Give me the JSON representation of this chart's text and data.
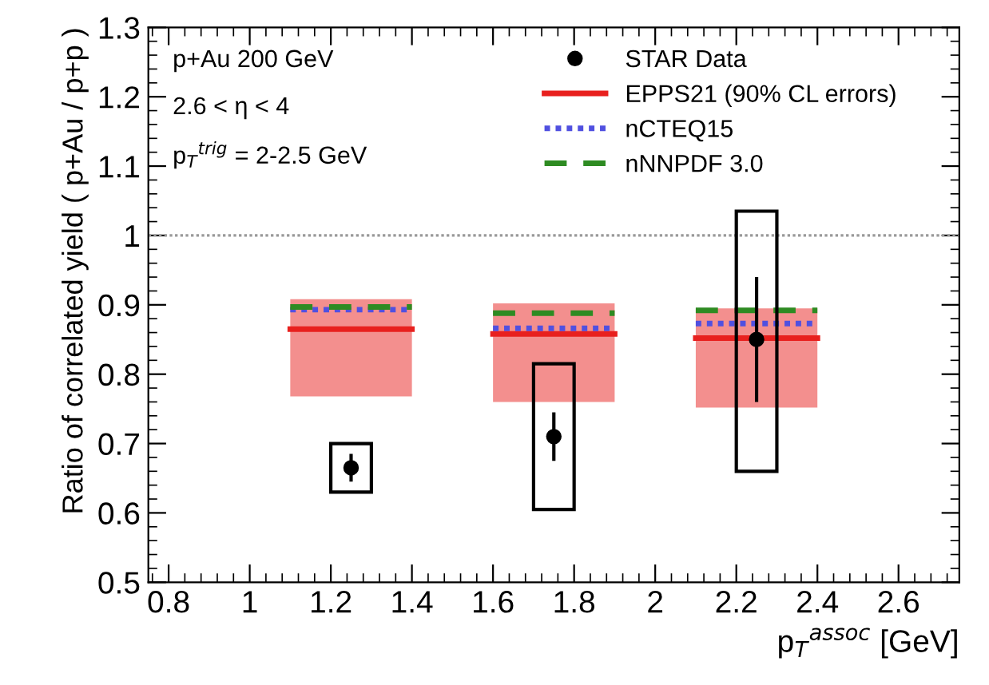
{
  "chart_data": {
    "type": "scatter",
    "xlabel": "p$_{T}$$^{assoc}$ [GeV]",
    "ylabel": "Ratio of correlated yield ( p+Au / p+p )",
    "annotations": [
      "p+Au 200 GeV",
      "2.6 < η < 4",
      "p$_{T}$$^{trig}$ = 2-2.5 GeV"
    ],
    "xlim": [
      0.75,
      2.75
    ],
    "xticks": [
      0.8,
      1,
      1.2,
      1.4,
      1.6,
      1.8,
      2,
      2.2,
      2.4,
      2.6
    ],
    "ylim": [
      0.5,
      1.3
    ],
    "yticks": [
      0.5,
      0.6,
      0.7,
      0.8,
      0.9,
      1,
      1.1,
      1.2,
      1.3
    ],
    "grid": false,
    "legend": "top right",
    "ref_lines": [
      {
        "axis": "y",
        "value": 1,
        "color": "#999999",
        "line_style": "dotted"
      }
    ],
    "series": [
      {
        "name": "STAR Data",
        "color": "#000000",
        "marker": "circle",
        "x": [
          1.25,
          1.75,
          2.25
        ],
        "values": [
          0.665,
          0.71,
          0.85
        ],
        "errors": [
          0.02,
          0.035,
          0.09
        ]
      },
      {
        "type": "bar",
        "color": "#000000",
        "x": [
          1.25,
          1.75,
          2.25
        ],
        "base": [
          0.63,
          0.605,
          0.66
        ],
        "values": [
          0.07,
          0.21,
          0.375
        ]
      },
      {
        "name": "EPPS21 (90% CL errors)",
        "type": "line",
        "color": "#e8201e",
        "line_style": "solid",
        "x": [
          1.1,
          1.4,
          1.5,
          1.6,
          1.9,
          2.0,
          2.1,
          2.4
        ],
        "values": [
          0.865,
          0.865,
          null,
          0.858,
          0.858,
          null,
          0.852,
          0.852
        ],
        "lower": [
          0.768,
          0.768,
          null,
          0.76,
          0.76,
          null,
          0.752,
          0.752
        ],
        "upper": [
          0.908,
          0.908,
          null,
          0.902,
          0.902,
          null,
          0.895,
          0.895
        ]
      },
      {
        "name": "nCTEQ15",
        "type": "line",
        "color": "#5050e0",
        "line_style": "dotted",
        "x": [
          1.1,
          1.4,
          1.5,
          1.6,
          1.9,
          2.0,
          2.1,
          2.4
        ],
        "values": [
          0.893,
          0.893,
          null,
          0.866,
          0.866,
          null,
          0.873,
          0.873
        ]
      },
      {
        "name": "nNNPDF 3.0",
        "type": "line",
        "color": "#2e8b22",
        "line_style": "dashed",
        "x": [
          1.1,
          1.4,
          1.5,
          1.6,
          1.9,
          2.0,
          2.1,
          2.4
        ],
        "values": [
          0.897,
          0.897,
          null,
          0.888,
          0.888,
          null,
          0.892,
          0.892
        ]
      }
    ]
  }
}
